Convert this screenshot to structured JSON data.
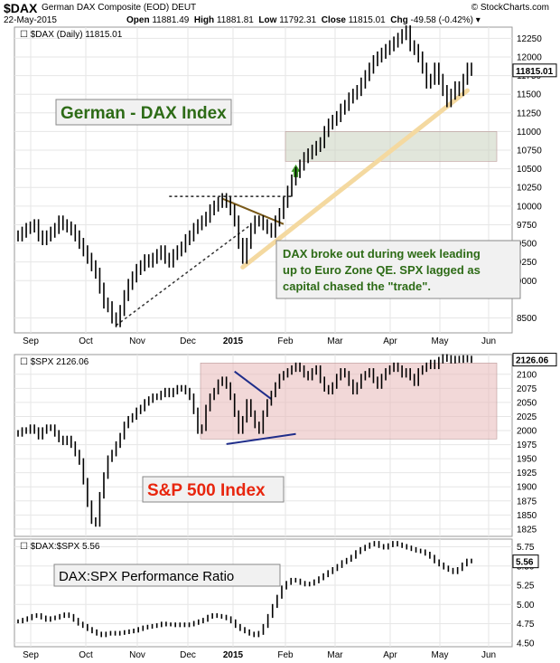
{
  "header": {
    "symbol": "$DAX",
    "name": "German DAX Composite (EOD)",
    "exchange": "DEUT",
    "date": "22-May-2015",
    "credit": "© StockCharts.com",
    "open_label": "Open",
    "open": "11881.49",
    "high_label": "High",
    "high": "11881.81",
    "low_label": "Low",
    "low": "11792.31",
    "close_label": "Close",
    "close": "11815.01",
    "chg_label": "Chg",
    "chg": "-49.58 (-0.42%)"
  },
  "colors": {
    "price": "#000000",
    "grid": "#e6e6e6",
    "green_text": "#2d6b16",
    "red_text": "#e8260e",
    "trend_fill": "#f4d9a0",
    "breakout_box": "#c9d2bd",
    "spx_box": "#e7b8b8",
    "wedge_brown": "#7a5a1a",
    "wedge_blue": "#1f2d8a",
    "arrow_green": "#3c9a25"
  },
  "x_axis_labels": [
    "Sep",
    "Oct",
    "Nov",
    "Dec",
    "2015",
    "Feb",
    "Mar",
    "Apr",
    "May",
    "Jun"
  ],
  "chart_data": [
    {
      "type": "line",
      "panel": "dax",
      "legend": "$DAX (Daily) 11815.01",
      "title": "German - DAX Index",
      "ylim": [
        8300,
        12400
      ],
      "yticks": [
        8500,
        9000,
        9250,
        9500,
        9750,
        10000,
        10250,
        10500,
        10750,
        11000,
        11250,
        11500,
        11750,
        12000,
        12250
      ],
      "last_value_label": "11815.01",
      "annotation": "DAX broke out during week leading up to Euro Zone QE. SPX lagged as capital chased the \"trade\".",
      "zones": [
        {
          "from_month": "Feb",
          "ylim": [
            10600,
            11000
          ]
        }
      ],
      "series": [
        {
          "values": [
            9600,
            9650,
            9700,
            9720,
            9750,
            9600,
            9550,
            9600,
            9650,
            9700,
            9800,
            9750,
            9720,
            9680,
            9600,
            9500,
            9400,
            9300,
            9200,
            9100,
            8900,
            8700,
            8650,
            8500,
            8450,
            8600,
            8800,
            8950,
            9050,
            9150,
            9200,
            9280,
            9250,
            9300,
            9350,
            9400,
            9300,
            9250,
            9350,
            9400,
            9450,
            9550,
            9600,
            9700,
            9750,
            9800,
            9850,
            9950,
            10000,
            10050,
            10100,
            10050,
            9950,
            9800,
            9500,
            9300,
            9500,
            9700,
            9800,
            9800,
            9750,
            9700,
            9650,
            9800,
            9900,
            10050,
            10200,
            10350,
            10450,
            10550,
            10650,
            10700,
            10750,
            10800,
            10850,
            11000,
            11100,
            11150,
            11200,
            11300,
            11350,
            11450,
            11500,
            11550,
            11650,
            11750,
            11850,
            11950,
            12000,
            12050,
            12100,
            12150,
            12200,
            12250,
            12300,
            12350,
            12150,
            12100,
            12000,
            11850,
            11650,
            11700,
            11850,
            11700,
            11550,
            11400,
            11500,
            11600,
            11550,
            11700,
            11850,
            11820
          ],
          "x_start_month": "Sep",
          "x_end_month": "May"
        }
      ]
    },
    {
      "type": "line",
      "panel": "spx",
      "legend": "$SPX 2126.06",
      "title": "S&P 500 Index",
      "ylim": [
        1812,
        2135
      ],
      "yticks": [
        1825,
        1850,
        1875,
        1900,
        1925,
        1950,
        1975,
        2000,
        2025,
        2050,
        2075,
        2100
      ],
      "last_value_label": "2126.06",
      "zones": [
        {
          "from_month": "Dec",
          "ylim": [
            1985,
            2120
          ]
        }
      ],
      "series": [
        {
          "values": [
            1995,
            2000,
            2000,
            2005,
            2000,
            1990,
            2000,
            2005,
            2005,
            1995,
            1985,
            1980,
            1985,
            1975,
            1960,
            1945,
            1910,
            1870,
            1840,
            1835,
            1885,
            1920,
            1950,
            1960,
            1975,
            1990,
            2010,
            2020,
            2025,
            2035,
            2040,
            2050,
            2055,
            2060,
            2060,
            2065,
            2070,
            2065,
            2070,
            2075,
            2075,
            2070,
            2060,
            2035,
            2000,
            2005,
            2040,
            2060,
            2070,
            2085,
            2090,
            2080,
            2060,
            2030,
            2000,
            2020,
            2050,
            2030,
            2010,
            2000,
            2030,
            2050,
            2065,
            2080,
            2095,
            2100,
            2105,
            2110,
            2115,
            2110,
            2100,
            2095,
            2105,
            2110,
            2090,
            2075,
            2070,
            2080,
            2095,
            2105,
            2100,
            2085,
            2070,
            2080,
            2095,
            2100,
            2105,
            2090,
            2080,
            2095,
            2105,
            2110,
            2115,
            2110,
            2100,
            2105,
            2095,
            2085,
            2105,
            2110,
            2115,
            2120,
            2115,
            2125,
            2130,
            2128,
            2125,
            2127,
            2126,
            2128,
            2127,
            2126
          ],
          "x_start_month": "Sep",
          "x_end_month": "May"
        }
      ]
    },
    {
      "type": "line",
      "panel": "ratio",
      "legend": "$DAX:$SPX 5.56",
      "title": "DAX:SPX Performance Ratio",
      "ylim": [
        4.45,
        5.85
      ],
      "yticks": [
        4.5,
        4.75,
        5.0,
        5.25,
        5.5,
        5.75
      ],
      "last_value_label": "5.56",
      "series": [
        {
          "values": [
            4.78,
            4.8,
            4.82,
            4.85,
            4.86,
            4.83,
            4.8,
            4.82,
            4.83,
            4.85,
            4.87,
            4.85,
            4.8,
            4.75,
            4.72,
            4.68,
            4.65,
            4.62,
            4.6,
            4.62,
            4.63,
            4.62,
            4.63,
            4.64,
            4.65,
            4.66,
            4.68,
            4.7,
            4.71,
            4.72,
            4.73,
            4.75,
            4.74,
            4.74,
            4.73,
            4.74,
            4.73,
            4.74,
            4.76,
            4.78,
            4.8,
            4.84,
            4.86,
            4.85,
            4.84,
            4.82,
            4.78,
            4.72,
            4.68,
            4.65,
            4.62,
            4.6,
            4.63,
            4.72,
            4.85,
            4.98,
            5.1,
            5.22,
            5.28,
            5.32,
            5.31,
            5.28,
            5.26,
            5.27,
            5.3,
            5.34,
            5.38,
            5.42,
            5.46,
            5.5,
            5.55,
            5.58,
            5.62,
            5.68,
            5.72,
            5.75,
            5.78,
            5.8,
            5.76,
            5.74,
            5.77,
            5.8,
            5.78,
            5.76,
            5.74,
            5.72,
            5.7,
            5.69,
            5.66,
            5.62,
            5.56,
            5.52,
            5.48,
            5.45,
            5.42,
            5.46,
            5.52,
            5.57,
            5.56
          ],
          "x_start_month": "Sep",
          "x_end_month": "May"
        }
      ]
    }
  ]
}
